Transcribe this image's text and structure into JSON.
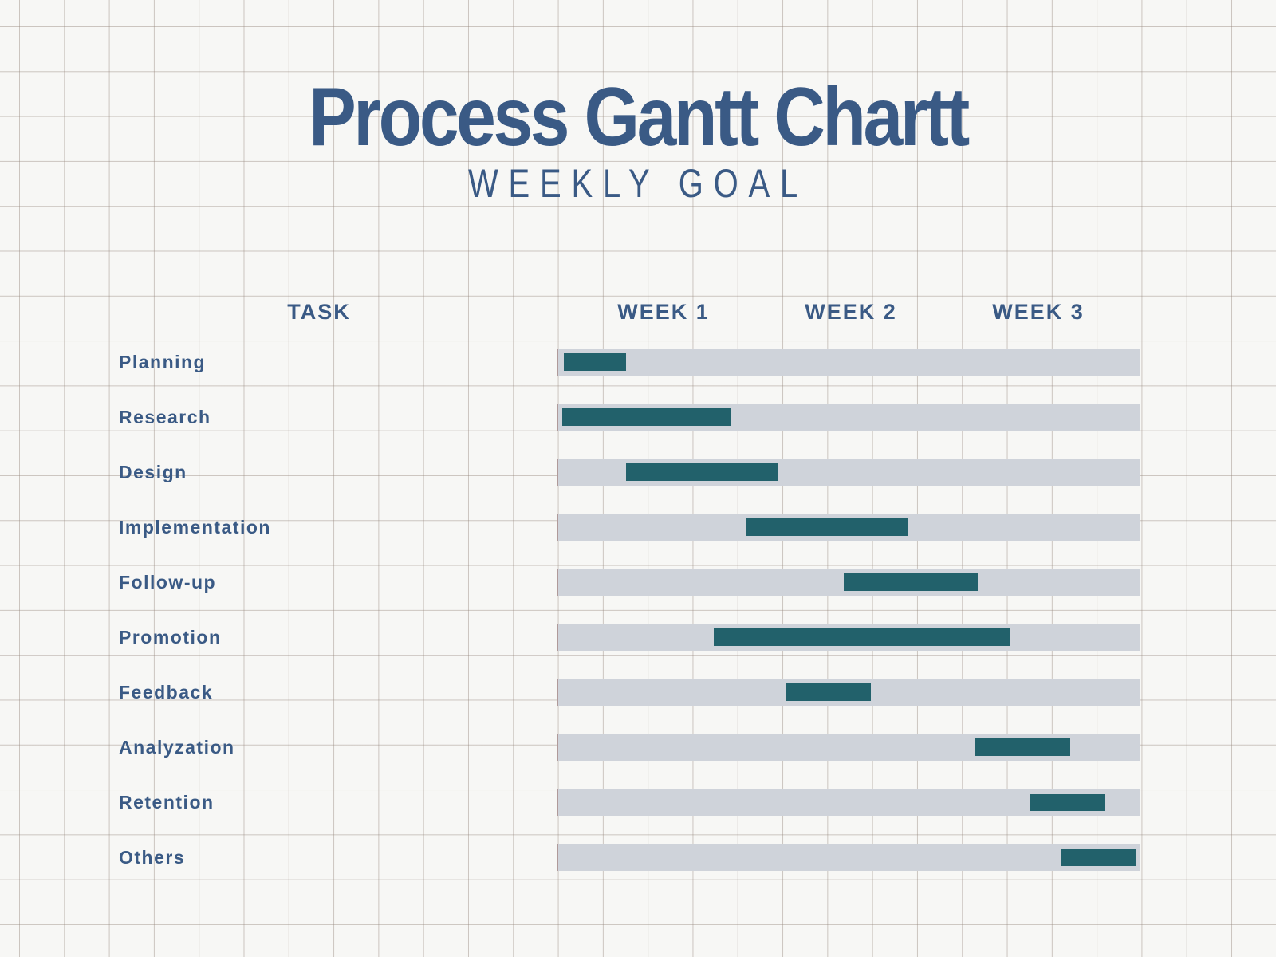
{
  "title": "Process Gantt Chartt",
  "subtitle": "WEEKLY GOAL",
  "colors": {
    "title": "#3a5a85",
    "bar": "#22616b",
    "track": "#cfd3da",
    "background": "#f7f7f5"
  },
  "chart_data": {
    "type": "gantt",
    "title": "Process Gantt Chartt",
    "subtitle": "WEEKLY GOAL",
    "task_header": "TASK",
    "columns": [
      "WEEK 1",
      "WEEK 2",
      "WEEK 3"
    ],
    "xlim_weeks": [
      0,
      3
    ],
    "tasks": [
      {
        "name": "Planning",
        "start": 0.03,
        "end": 0.35
      },
      {
        "name": "Research",
        "start": 0.02,
        "end": 0.89
      },
      {
        "name": "Design",
        "start": 0.35,
        "end": 1.13
      },
      {
        "name": "Implementation",
        "start": 0.97,
        "end": 1.8
      },
      {
        "name": "Follow-up",
        "start": 1.47,
        "end": 2.16
      },
      {
        "name": "Promotion",
        "start": 0.8,
        "end": 2.33
      },
      {
        "name": "Feedback",
        "start": 1.17,
        "end": 1.61
      },
      {
        "name": "Analyzation",
        "start": 2.15,
        "end": 2.64
      },
      {
        "name": "Retention",
        "start": 2.43,
        "end": 2.82
      },
      {
        "name": "Others",
        "start": 2.59,
        "end": 2.98
      }
    ]
  }
}
